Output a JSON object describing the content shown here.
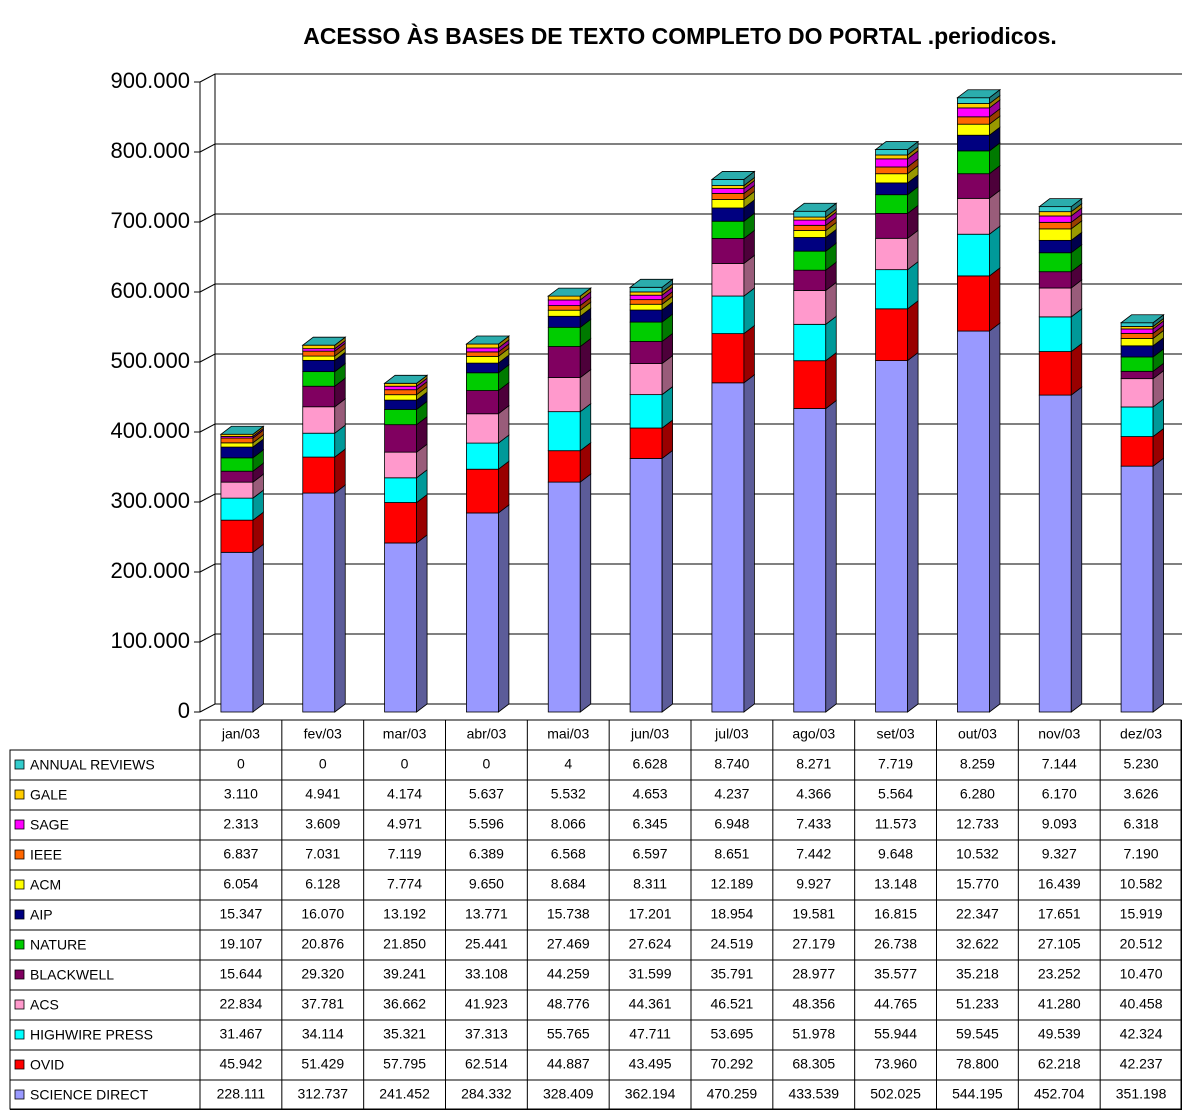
{
  "chart_data": {
    "type": "bar",
    "stacked": true,
    "title": "ACESSO ÀS BASES DE TEXTO COMPLETO DO PORTAL .periodicos.",
    "categories": [
      "jan/03",
      "fev/03",
      "mar/03",
      "abr/03",
      "mai/03",
      "jun/03",
      "jul/03",
      "ago/03",
      "set/03",
      "out/03",
      "nov/03",
      "dez/03"
    ],
    "ylim": [
      0,
      900000
    ],
    "yticks": [
      0,
      {
        "value": 100000,
        "label": "100.000"
      },
      {
        "value": 200000,
        "label": "200.000"
      },
      {
        "value": 300000,
        "label": "300.000"
      },
      {
        "value": 400000,
        "label": "400.000"
      },
      {
        "value": 500000,
        "label": "500.000"
      },
      {
        "value": 600000,
        "label": "600.000"
      },
      {
        "value": 700000,
        "label": "700.000"
      },
      {
        "value": 800000,
        "label": "800.000"
      },
      {
        "value": 900000,
        "label": "900.000"
      }
    ],
    "grid": true,
    "series": [
      {
        "name": "ANNUAL REVIEWS",
        "color": "#33cccc",
        "values": [
          0,
          0,
          0,
          0,
          4,
          6628,
          8740,
          8271,
          7719,
          8259,
          7144,
          5230
        ],
        "value_labels": [
          "0",
          "0",
          "0",
          "0",
          "4",
          "6.628",
          "8.740",
          "8.271",
          "7.719",
          "8.259",
          "7.144",
          "5.230"
        ]
      },
      {
        "name": "GALE",
        "color": "#ffcc00",
        "values": [
          3110,
          4941,
          4174,
          5637,
          5532,
          4653,
          4237,
          4366,
          5564,
          6280,
          6170,
          3626
        ],
        "value_labels": [
          "3.110",
          "4.941",
          "4.174",
          "5.637",
          "5.532",
          "4.653",
          "4.237",
          "4.366",
          "5.564",
          "6.280",
          "6.170",
          "3.626"
        ]
      },
      {
        "name": "SAGE",
        "color": "#ff00ff",
        "values": [
          2313,
          3609,
          4971,
          5596,
          8066,
          6345,
          6948,
          7433,
          11573,
          12733,
          9093,
          6318
        ],
        "value_labels": [
          "2.313",
          "3.609",
          "4.971",
          "5.596",
          "8.066",
          "6.345",
          "6.948",
          "7.433",
          "11.573",
          "12.733",
          "9.093",
          "6.318"
        ]
      },
      {
        "name": "IEEE",
        "color": "#ff6600",
        "values": [
          6837,
          7031,
          7119,
          6389,
          6568,
          6597,
          8651,
          7442,
          9648,
          10532,
          9327,
          7190
        ],
        "value_labels": [
          "6.837",
          "7.031",
          "7.119",
          "6.389",
          "6.568",
          "6.597",
          "8.651",
          "7.442",
          "9.648",
          "10.532",
          "9.327",
          "7.190"
        ]
      },
      {
        "name": "ACM",
        "color": "#ffff00",
        "values": [
          6054,
          6128,
          7774,
          9650,
          8684,
          8311,
          12189,
          9927,
          13148,
          15770,
          16439,
          10582
        ],
        "value_labels": [
          "6.054",
          "6.128",
          "7.774",
          "9.650",
          "8.684",
          "8.311",
          "12.189",
          "9.927",
          "13.148",
          "15.770",
          "16.439",
          "10.582"
        ]
      },
      {
        "name": "AIP",
        "color": "#000080",
        "values": [
          15347,
          16070,
          13192,
          13771,
          15738,
          17201,
          18954,
          19581,
          16815,
          22347,
          17651,
          15919
        ],
        "value_labels": [
          "15.347",
          "16.070",
          "13.192",
          "13.771",
          "15.738",
          "17.201",
          "18.954",
          "19.581",
          "16.815",
          "22.347",
          "17.651",
          "15.919"
        ]
      },
      {
        "name": "NATURE",
        "color": "#00cc00",
        "values": [
          19107,
          20876,
          21850,
          25441,
          27469,
          27624,
          24519,
          27179,
          26738,
          32622,
          27105,
          20512
        ],
        "value_labels": [
          "19.107",
          "20.876",
          "21.850",
          "25.441",
          "27.469",
          "27.624",
          "24.519",
          "27.179",
          "26.738",
          "32.622",
          "27.105",
          "20.512"
        ]
      },
      {
        "name": "BLACKWELL",
        "color": "#800060",
        "values": [
          15644,
          29320,
          39241,
          33108,
          44259,
          31599,
          35791,
          28977,
          35577,
          35218,
          23252,
          10470
        ],
        "value_labels": [
          "15.644",
          "29.320",
          "39.241",
          "33.108",
          "44.259",
          "31.599",
          "35.791",
          "28.977",
          "35.577",
          "35.218",
          "23.252",
          "10.470"
        ]
      },
      {
        "name": "ACS",
        "color": "#ff99cc",
        "values": [
          22834,
          37781,
          36662,
          41923,
          48776,
          44361,
          46521,
          48356,
          44765,
          51233,
          41280,
          40458
        ],
        "value_labels": [
          "22.834",
          "37.781",
          "36.662",
          "41.923",
          "48.776",
          "44.361",
          "46.521",
          "48.356",
          "44.765",
          "51.233",
          "41.280",
          "40.458"
        ]
      },
      {
        "name": "HIGHWIRE PRESS",
        "color": "#00ffff",
        "values": [
          31467,
          34114,
          35321,
          37313,
          55765,
          47711,
          53695,
          51978,
          55944,
          59545,
          49539,
          42324
        ],
        "value_labels": [
          "31.467",
          "34.114",
          "35.321",
          "37.313",
          "55.765",
          "47.711",
          "53.695",
          "51.978",
          "55.944",
          "59.545",
          "49.539",
          "42.324"
        ]
      },
      {
        "name": "OVID",
        "color": "#ff0000",
        "values": [
          45942,
          51429,
          57795,
          62514,
          44887,
          43495,
          70292,
          68305,
          73960,
          78800,
          62218,
          42237
        ],
        "value_labels": [
          "45.942",
          "51.429",
          "57.795",
          "62.514",
          "44.887",
          "43.495",
          "70.292",
          "68.305",
          "73.960",
          "78.800",
          "62.218",
          "42.237"
        ]
      },
      {
        "name": "SCIENCE DIRECT",
        "color": "#9999ff",
        "values": [
          228111,
          312737,
          241452,
          284332,
          328409,
          362194,
          470259,
          433539,
          502025,
          544195,
          452704,
          351198
        ],
        "value_labels": [
          "228.111",
          "312.737",
          "241.452",
          "284.332",
          "328.409",
          "362.194",
          "470.259",
          "433.539",
          "502.025",
          "544.195",
          "452.704",
          "351.198"
        ]
      }
    ]
  }
}
